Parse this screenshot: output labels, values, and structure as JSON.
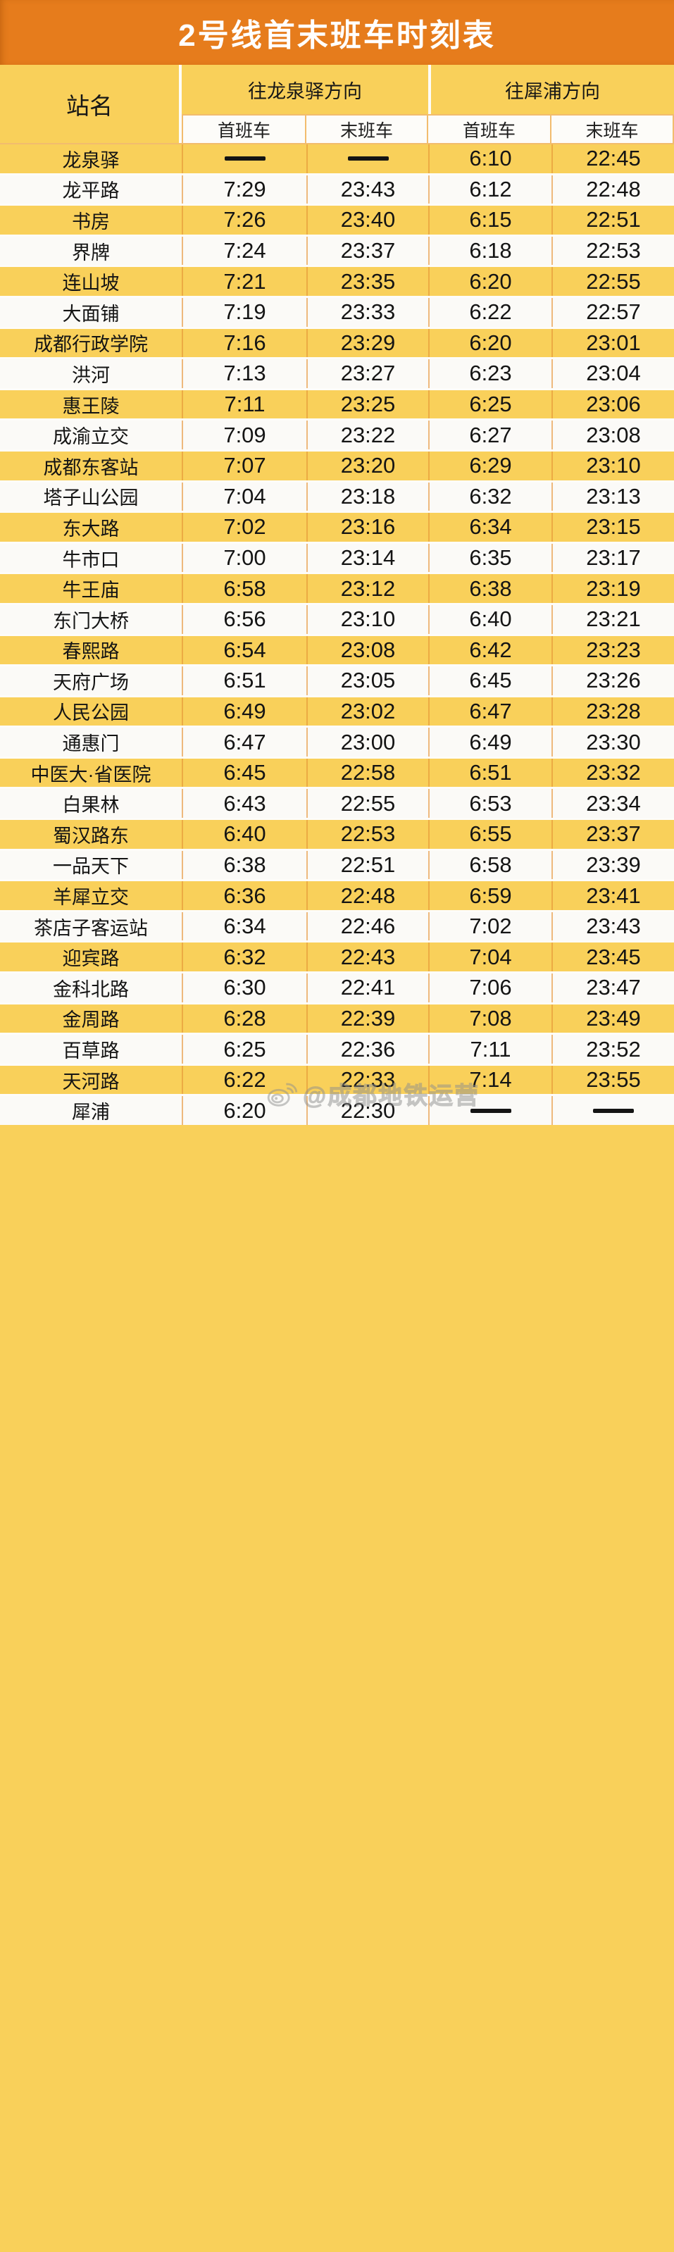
{
  "title": "2号线首末班车时刻表",
  "table": {
    "station_header": "站名",
    "direction_groups": [
      {
        "label": "往龙泉驿方向",
        "sub": [
          "首班车",
          "末班车"
        ]
      },
      {
        "label": "往犀浦方向",
        "sub": [
          "首班车",
          "末班车"
        ]
      }
    ],
    "no_service_symbol": "——",
    "rows": [
      {
        "station": "龙泉驿",
        "cells": [
          "——",
          "——",
          "6:10",
          "22:45"
        ]
      },
      {
        "station": "龙平路",
        "cells": [
          "7:29",
          "23:43",
          "6:12",
          "22:48"
        ]
      },
      {
        "station": "书房",
        "cells": [
          "7:26",
          "23:40",
          "6:15",
          "22:51"
        ]
      },
      {
        "station": "界牌",
        "cells": [
          "7:24",
          "23:37",
          "6:18",
          "22:53"
        ]
      },
      {
        "station": "连山坡",
        "cells": [
          "7:21",
          "23:35",
          "6:20",
          "22:55"
        ]
      },
      {
        "station": "大面铺",
        "cells": [
          "7:19",
          "23:33",
          "6:22",
          "22:57"
        ]
      },
      {
        "station": "成都行政学院",
        "cells": [
          "7:16",
          "23:29",
          "6:20",
          "23:01"
        ]
      },
      {
        "station": "洪河",
        "cells": [
          "7:13",
          "23:27",
          "6:23",
          "23:04"
        ]
      },
      {
        "station": "惠王陵",
        "cells": [
          "7:11",
          "23:25",
          "6:25",
          "23:06"
        ]
      },
      {
        "station": "成渝立交",
        "cells": [
          "7:09",
          "23:22",
          "6:27",
          "23:08"
        ]
      },
      {
        "station": "成都东客站",
        "cells": [
          "7:07",
          "23:20",
          "6:29",
          "23:10"
        ]
      },
      {
        "station": "塔子山公园",
        "cells": [
          "7:04",
          "23:18",
          "6:32",
          "23:13"
        ]
      },
      {
        "station": "东大路",
        "cells": [
          "7:02",
          "23:16",
          "6:34",
          "23:15"
        ]
      },
      {
        "station": "牛市口",
        "cells": [
          "7:00",
          "23:14",
          "6:35",
          "23:17"
        ]
      },
      {
        "station": "牛王庙",
        "cells": [
          "6:58",
          "23:12",
          "6:38",
          "23:19"
        ]
      },
      {
        "station": "东门大桥",
        "cells": [
          "6:56",
          "23:10",
          "6:40",
          "23:21"
        ]
      },
      {
        "station": "春熙路",
        "cells": [
          "6:54",
          "23:08",
          "6:42",
          "23:23"
        ]
      },
      {
        "station": "天府广场",
        "cells": [
          "6:51",
          "23:05",
          "6:45",
          "23:26"
        ]
      },
      {
        "station": "人民公园",
        "cells": [
          "6:49",
          "23:02",
          "6:47",
          "23:28"
        ]
      },
      {
        "station": "通惠门",
        "cells": [
          "6:47",
          "23:00",
          "6:49",
          "23:30"
        ]
      },
      {
        "station": "中医大·省医院",
        "cells": [
          "6:45",
          "22:58",
          "6:51",
          "23:32"
        ]
      },
      {
        "station": "白果林",
        "cells": [
          "6:43",
          "22:55",
          "6:53",
          "23:34"
        ]
      },
      {
        "station": "蜀汉路东",
        "cells": [
          "6:40",
          "22:53",
          "6:55",
          "23:37"
        ]
      },
      {
        "station": "一品天下",
        "cells": [
          "6:38",
          "22:51",
          "6:58",
          "23:39"
        ]
      },
      {
        "station": "羊犀立交",
        "cells": [
          "6:36",
          "22:48",
          "6:59",
          "23:41"
        ]
      },
      {
        "station": "茶店子客运站",
        "cells": [
          "6:34",
          "22:46",
          "7:02",
          "23:43"
        ]
      },
      {
        "station": "迎宾路",
        "cells": [
          "6:32",
          "22:43",
          "7:04",
          "23:45"
        ]
      },
      {
        "station": "金科北路",
        "cells": [
          "6:30",
          "22:41",
          "7:06",
          "23:47"
        ]
      },
      {
        "station": "金周路",
        "cells": [
          "6:28",
          "22:39",
          "7:08",
          "23:49"
        ]
      },
      {
        "station": "百草路",
        "cells": [
          "6:25",
          "22:36",
          "7:11",
          "23:52"
        ]
      },
      {
        "station": "天河路",
        "cells": [
          "6:22",
          "22:33",
          "7:14",
          "23:55"
        ]
      },
      {
        "station": "犀浦",
        "cells": [
          "6:20",
          "22:30",
          "——",
          "——"
        ]
      }
    ]
  },
  "watermark": {
    "icon": "weibo-icon",
    "text": "@成都地铁运营"
  },
  "colors": {
    "orange": "#e67c1c",
    "yellow": "#f9d05a",
    "text": "#141414"
  }
}
